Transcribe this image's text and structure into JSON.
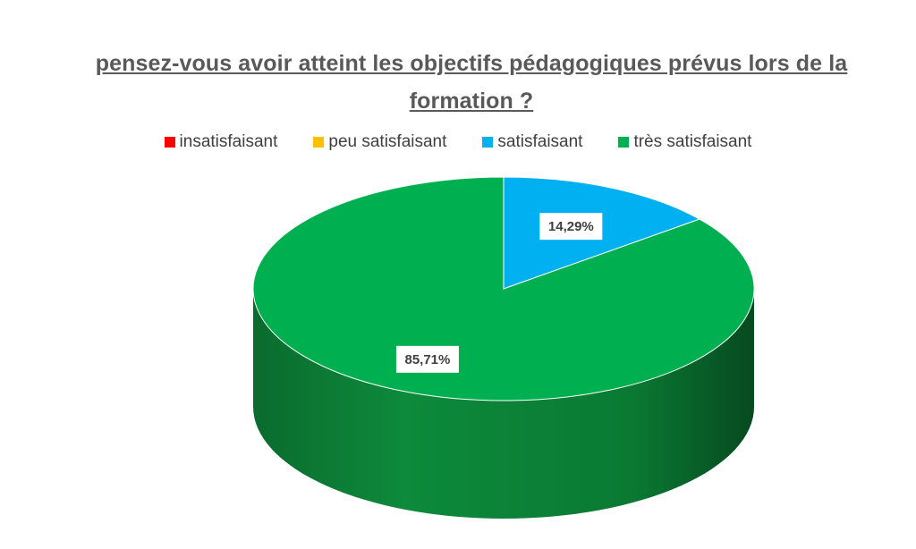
{
  "chart_data": {
    "type": "pie",
    "title": "pensez-vous avoir atteint les objectifs pédagogiques prévus lors de la formation ?",
    "categories": [
      "insatisfaisant",
      "peu satisfaisant",
      "satisfaisant",
      "très satisfaisant"
    ],
    "values": [
      0,
      0,
      14.29,
      85.71
    ],
    "data_labels": [
      "",
      "",
      "14,29%",
      "85,71%"
    ],
    "colors": [
      "#FF0000",
      "#FFC000",
      "#00B0F0",
      "#00B050"
    ],
    "legend": "top",
    "style": "3d"
  }
}
